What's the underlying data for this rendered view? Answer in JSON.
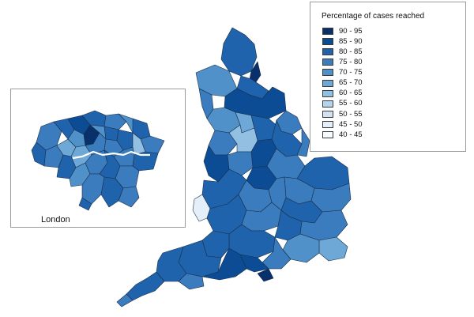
{
  "legend": {
    "title": "Percentage of cases reached",
    "items": [
      {
        "label": "90 - 95",
        "color": "#08306b"
      },
      {
        "label": "85 - 90",
        "color": "#0b4c95"
      },
      {
        "label": "80 - 85",
        "color": "#1f63ad"
      },
      {
        "label": "75 - 80",
        "color": "#3a7cbd"
      },
      {
        "label": "70 - 75",
        "color": "#5091c9"
      },
      {
        "label": "65 - 70",
        "color": "#6ea8d6"
      },
      {
        "label": "60 - 65",
        "color": "#92c0e2"
      },
      {
        "label": "55 - 60",
        "color": "#b4d3ec"
      },
      {
        "label": "50 - 55",
        "color": "#d0e2f3"
      },
      {
        "label": "45 - 50",
        "color": "#e5effa"
      },
      {
        "label": "40 - 45",
        "color": "#f7fbff"
      }
    ]
  },
  "inset": {
    "label": "London"
  }
}
